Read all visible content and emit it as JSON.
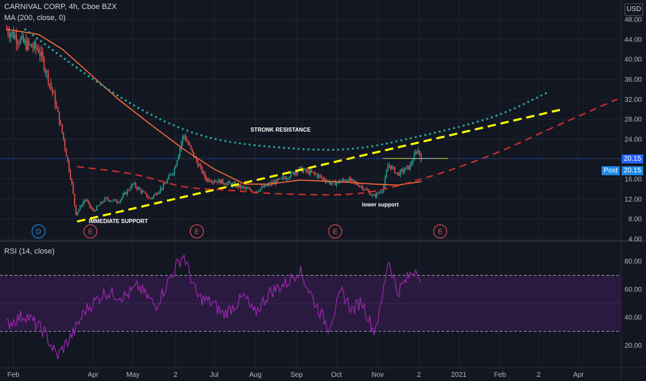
{
  "header": {
    "symbol_line": "CARNIVAL CORP, 4h, Cboe BZX",
    "ma_line": "MA (200, close, 0)",
    "rsi_line": "RSI (14, close)",
    "currency": "USD"
  },
  "price_badges": {
    "last": "20.15",
    "post_label": "Post",
    "post_value": "20.15"
  },
  "colors": {
    "background": "#131722",
    "candle_up": "#26a69a",
    "candle_down": "#ef5350",
    "ma": "#ff6d3a",
    "resistance_dotted": "#26a69a",
    "support_dashed": "#ffff00",
    "lower_dashed": "#d32f2f",
    "rsi_line": "#9c27b0",
    "rsi_band": "#2a1a3f",
    "price_line": "#2962ff"
  },
  "chart_data": [
    {
      "type": "candlestick",
      "title": "CARNIVAL CORP, 4h, Cboe BZX",
      "x_ticks": [
        "Feb",
        "Apr",
        "May",
        "2",
        "Jul",
        "Aug",
        "Sep",
        "Oct",
        "Nov",
        "2",
        "2021",
        "Feb",
        "2",
        "Apr"
      ],
      "y_ticks": [
        4.0,
        8.0,
        12.0,
        16.0,
        20.0,
        24.0,
        28.0,
        32.0,
        36.0,
        40.0,
        44.0,
        48.0
      ],
      "ylim": [
        4,
        50
      ],
      "price_path": [
        [
          "2020-01-27",
          46
        ],
        [
          "2020-02-10",
          43
        ],
        [
          "2020-02-20",
          42
        ],
        [
          "2020-02-24",
          39
        ],
        [
          "2020-03-02",
          33
        ],
        [
          "2020-03-09",
          25
        ],
        [
          "2020-03-16",
          15
        ],
        [
          "2020-03-19",
          9
        ],
        [
          "2020-03-26",
          12
        ],
        [
          "2020-04-01",
          9.5
        ],
        [
          "2020-04-10",
          12
        ],
        [
          "2020-04-20",
          11.5
        ],
        [
          "2020-05-01",
          15
        ],
        [
          "2020-05-14",
          12
        ],
        [
          "2020-05-25",
          15
        ],
        [
          "2020-06-01",
          18
        ],
        [
          "2020-06-08",
          25
        ],
        [
          "2020-06-15",
          21
        ],
        [
          "2020-06-25",
          16
        ],
        [
          "2020-07-06",
          15.5
        ],
        [
          "2020-07-20",
          14.5
        ],
        [
          "2020-07-31",
          13.5
        ],
        [
          "2020-08-12",
          15
        ],
        [
          "2020-08-25",
          16.5
        ],
        [
          "2020-09-03",
          18
        ],
        [
          "2020-09-15",
          17
        ],
        [
          "2020-09-28",
          15
        ],
        [
          "2020-10-09",
          16
        ],
        [
          "2020-10-20",
          14.5
        ],
        [
          "2020-10-29",
          12.5
        ],
        [
          "2020-11-05",
          14
        ],
        [
          "2020-11-09",
          19
        ],
        [
          "2020-11-16",
          17
        ],
        [
          "2020-11-25",
          18.5
        ],
        [
          "2020-12-01",
          22
        ],
        [
          "2020-12-04",
          20.15
        ]
      ],
      "ma_200": [
        [
          "2020-01-27",
          46
        ],
        [
          "2020-02-20",
          45
        ],
        [
          "2020-03-09",
          42
        ],
        [
          "2020-03-30",
          37
        ],
        [
          "2020-04-20",
          32
        ],
        [
          "2020-05-14",
          27
        ],
        [
          "2020-06-08",
          22
        ],
        [
          "2020-07-01",
          18
        ],
        [
          "2020-07-24",
          15
        ],
        [
          "2020-08-12",
          15
        ],
        [
          "2020-09-03",
          15.8
        ],
        [
          "2020-10-01",
          15.5
        ],
        [
          "2020-10-29",
          15
        ],
        [
          "2020-11-16",
          14.8
        ],
        [
          "2020-12-04",
          15.5
        ]
      ],
      "last_price": 20.15,
      "event_markers": [
        {
          "label": "D",
          "date": "2020-02-20",
          "color": "#2196f3"
        },
        {
          "label": "E",
          "date": "2020-03-30",
          "color": "#ef5350"
        },
        {
          "label": "E",
          "date": "2020-06-18",
          "color": "#ef5350"
        },
        {
          "label": "E",
          "date": "2020-09-30",
          "color": "#ef5350"
        },
        {
          "label": "E",
          "date": "2020-12-18",
          "color": "#ef5350"
        }
      ],
      "drawings": [
        {
          "name": "resistance-curve",
          "style": "dotted",
          "points": [
            [
              "2020-02-10",
              46
            ],
            [
              "2020-04-01",
              36
            ],
            [
              "2020-05-14",
              29
            ],
            [
              "2020-06-25",
              24.5
            ],
            [
              "2020-08-12",
              22.5
            ],
            [
              "2020-10-09",
              22
            ],
            [
              "2020-12-01",
              24.5
            ],
            [
              "2021-01-27",
              28.5
            ],
            [
              "2021-03-10",
              33.5
            ]
          ]
        },
        {
          "name": "immediate-support-line",
          "style": "dashed",
          "points": [
            [
              "2020-03-20",
              7.5
            ],
            [
              "2021-03-20",
              30
            ]
          ]
        },
        {
          "name": "lower-support-curve",
          "style": "dashed",
          "points": [
            [
              "2020-03-20",
              18.5
            ],
            [
              "2020-05-01",
              17
            ],
            [
              "2020-06-08",
              14.5
            ],
            [
              "2020-07-10",
              13.8
            ],
            [
              "2020-08-25",
              13
            ],
            [
              "2020-10-20",
              13.2
            ],
            [
              "2020-12-10",
              16.5
            ],
            [
              "2021-01-27",
              21
            ],
            [
              "2021-03-10",
              26
            ],
            [
              "2021-04-30",
              32
            ]
          ]
        },
        {
          "name": "level-20",
          "style": "solid",
          "points": [
            [
              "2020-11-05",
              20.15
            ],
            [
              "2020-12-24",
              20.15
            ]
          ]
        }
      ],
      "annotations": [
        {
          "text": "STRONK RESISTANCE",
          "date": "2020-08-20",
          "price": 25.5
        },
        {
          "text": "IMMEDIATE SUPPORT",
          "date": "2020-04-20",
          "price": 7.2
        },
        {
          "text": "lower support",
          "date": "2020-11-03",
          "price": 10.5
        }
      ]
    },
    {
      "type": "line",
      "title": "RSI (14, close)",
      "y_ticks": [
        20.0,
        40.0,
        60.0,
        80.0
      ],
      "ylim": [
        5,
        90
      ],
      "bands": [
        30,
        70
      ],
      "mid": 50,
      "values": [
        [
          "2020-01-27",
          35
        ],
        [
          "2020-02-10",
          42
        ],
        [
          "2020-02-24",
          30
        ],
        [
          "2020-03-05",
          12
        ],
        [
          "2020-03-18",
          30
        ],
        [
          "2020-03-26",
          45
        ],
        [
          "2020-04-10",
          58
        ],
        [
          "2020-04-25",
          55
        ],
        [
          "2020-05-05",
          62
        ],
        [
          "2020-05-18",
          48
        ],
        [
          "2020-06-01",
          74
        ],
        [
          "2020-06-08",
          85
        ],
        [
          "2020-06-18",
          55
        ],
        [
          "2020-06-30",
          50
        ],
        [
          "2020-07-08",
          42
        ],
        [
          "2020-07-24",
          55
        ],
        [
          "2020-07-31",
          42
        ],
        [
          "2020-08-12",
          58
        ],
        [
          "2020-08-25",
          65
        ],
        [
          "2020-09-03",
          74
        ],
        [
          "2020-09-15",
          50
        ],
        [
          "2020-09-25",
          33
        ],
        [
          "2020-10-05",
          58
        ],
        [
          "2020-10-13",
          45
        ],
        [
          "2020-10-20",
          52
        ],
        [
          "2020-10-29",
          30
        ],
        [
          "2020-11-03",
          45
        ],
        [
          "2020-11-09",
          82
        ],
        [
          "2020-11-16",
          58
        ],
        [
          "2020-11-25",
          70
        ],
        [
          "2020-12-01",
          76
        ],
        [
          "2020-12-04",
          60
        ]
      ]
    }
  ]
}
